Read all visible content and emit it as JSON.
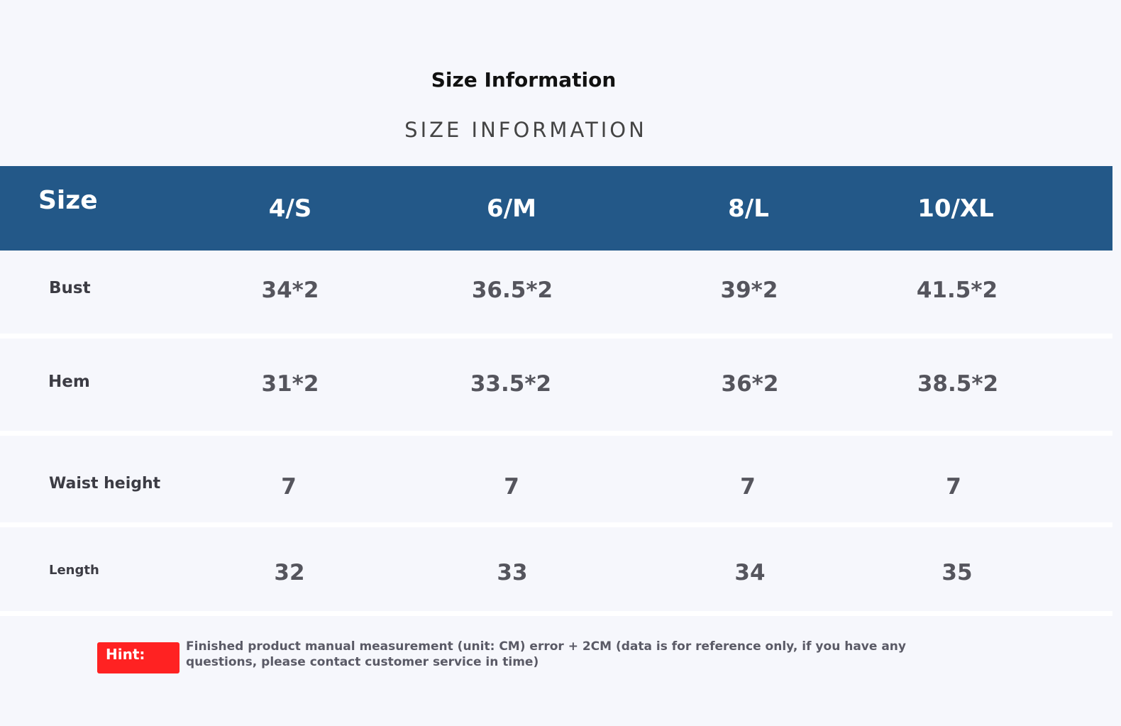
{
  "title": "Size Information",
  "subtitle": "SIZE INFORMATION",
  "table": {
    "header_label": "Size",
    "sizes": [
      "4/S",
      "6/M",
      "8/L",
      "10/XL"
    ],
    "rows": [
      {
        "label": "Bust",
        "values": [
          "34*2",
          "36.5*2",
          "39*2",
          "41.5*2"
        ]
      },
      {
        "label": "Hem",
        "values": [
          "31*2",
          "33.5*2",
          "36*2",
          "38.5*2"
        ]
      },
      {
        "label": "Waist height",
        "values": [
          "7",
          "7",
          "7",
          "7"
        ]
      },
      {
        "label": "Length",
        "values": [
          "32",
          "33",
          "34",
          "35"
        ]
      }
    ]
  },
  "hint": {
    "badge": "Hint:",
    "text": "Finished product manual measurement (unit: CM) error + 2CM (data is for reference only, if you have any questions, please contact customer service in time)"
  },
  "colors": {
    "header_band": "#235888",
    "hint_badge": "#ff2222",
    "background": "#f6f7fc"
  }
}
